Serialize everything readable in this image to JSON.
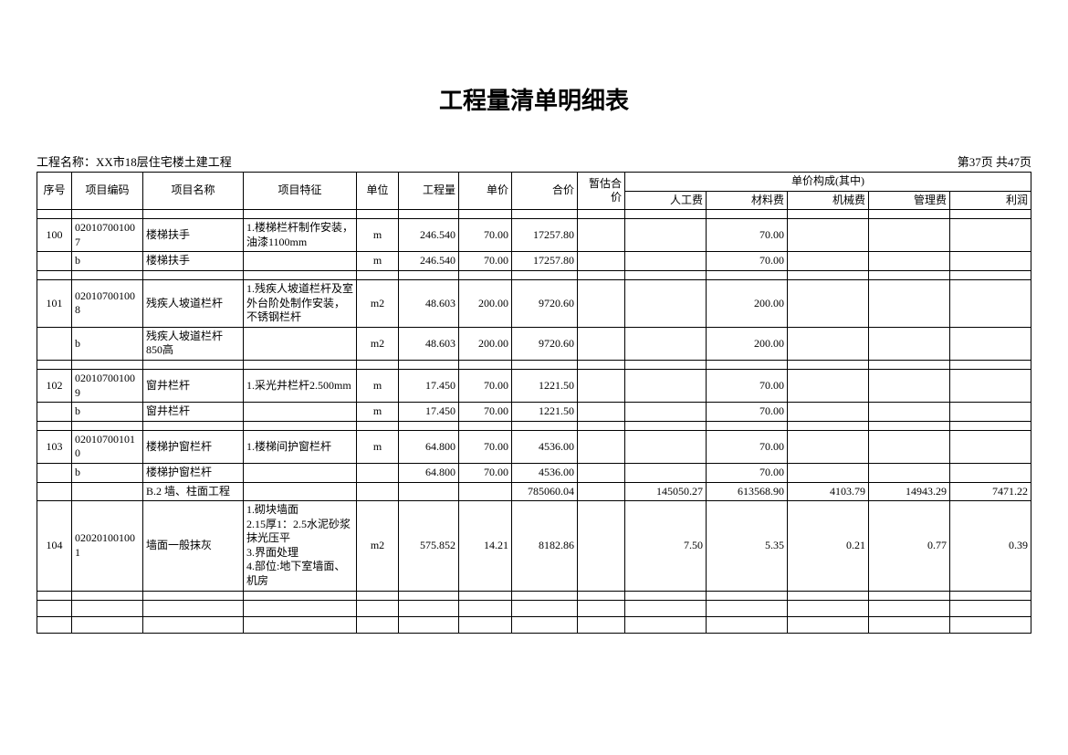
{
  "title": "工程量清单明细表",
  "project_label": "工程名称：",
  "project_name": "XX市18层住宅楼土建工程",
  "page_info": "第37页 共47页",
  "headers": {
    "seq": "序号",
    "code": "项目编码",
    "name": "项目名称",
    "feat": "项目特征",
    "unit": "单位",
    "qty": "工程量",
    "price": "单价",
    "total": "合价",
    "est": "暂估合价",
    "comp": "单价构成(其中)",
    "labor": "人工费",
    "material": "材料费",
    "machine": "机械费",
    "manage": "管理费",
    "profit": "利润"
  },
  "rows": [
    {
      "type": "spacer"
    },
    {
      "type": "data",
      "seq": "100",
      "code": "020107001007",
      "name": "楼梯扶手",
      "feat": "1.楼梯栏杆制作安装，油漆1100mm",
      "unit": "m",
      "qty": "246.540",
      "price": "70.00",
      "total": "17257.80",
      "est": "",
      "labor": "",
      "material": "70.00",
      "machine": "",
      "manage": "",
      "profit": ""
    },
    {
      "type": "data",
      "seq": "",
      "code": "b",
      "name": "楼梯扶手",
      "feat": "",
      "unit": "m",
      "qty": "246.540",
      "price": "70.00",
      "total": "17257.80",
      "est": "",
      "labor": "",
      "material": "70.00",
      "machine": "",
      "manage": "",
      "profit": ""
    },
    {
      "type": "spacer"
    },
    {
      "type": "data",
      "tall": true,
      "seq": "101",
      "code": "020107001008",
      "name": "残疾人坡道栏杆",
      "feat": "1.残疾人坡道栏杆及室外台阶处制作安装，不锈钢栏杆",
      "unit": "m2",
      "qty": "48.603",
      "price": "200.00",
      "total": "9720.60",
      "est": "",
      "labor": "",
      "material": "200.00",
      "machine": "",
      "manage": "",
      "profit": ""
    },
    {
      "type": "data",
      "seq": "",
      "code": "b",
      "name": "残疾人坡道栏杆 850高",
      "feat": "",
      "unit": "m2",
      "qty": "48.603",
      "price": "200.00",
      "total": "9720.60",
      "est": "",
      "labor": "",
      "material": "200.00",
      "machine": "",
      "manage": "",
      "profit": ""
    },
    {
      "type": "spacer"
    },
    {
      "type": "data",
      "seq": "102",
      "code": "020107001009",
      "name": "窗井栏杆",
      "feat": "1.采光井栏杆2.500mm",
      "unit": "m",
      "qty": "17.450",
      "price": "70.00",
      "total": "1221.50",
      "est": "",
      "labor": "",
      "material": "70.00",
      "machine": "",
      "manage": "",
      "profit": ""
    },
    {
      "type": "data",
      "seq": "",
      "code": "b",
      "name": "窗井栏杆",
      "feat": "",
      "unit": "m",
      "qty": "17.450",
      "price": "70.00",
      "total": "1221.50",
      "est": "",
      "labor": "",
      "material": "70.00",
      "machine": "",
      "manage": "",
      "profit": ""
    },
    {
      "type": "spacer"
    },
    {
      "type": "data",
      "seq": "103",
      "code": "020107001010",
      "name": "楼梯护窗栏杆",
      "feat": "1.楼梯间护窗栏杆",
      "unit": "m",
      "qty": "64.800",
      "price": "70.00",
      "total": "4536.00",
      "est": "",
      "labor": "",
      "material": "70.00",
      "machine": "",
      "manage": "",
      "profit": ""
    },
    {
      "type": "data",
      "seq": "",
      "code": "b",
      "name": "楼梯护窗栏杆",
      "feat": "",
      "unit": "",
      "qty": "64.800",
      "price": "70.00",
      "total": "4536.00",
      "est": "",
      "labor": "",
      "material": "70.00",
      "machine": "",
      "manage": "",
      "profit": ""
    },
    {
      "type": "data",
      "seq": "",
      "code": "",
      "name": "B.2 墙、柱面工程",
      "feat": "",
      "unit": "",
      "qty": "",
      "price": "",
      "total": "785060.04",
      "est": "",
      "labor": "145050.27",
      "material": "613568.90",
      "machine": "4103.79",
      "manage": "14943.29",
      "profit": "7471.22"
    },
    {
      "type": "data",
      "xtall": true,
      "seq": "104",
      "code": "020201001001",
      "name": "墙面一般抹灰",
      "feat": "1.砌块墙面\n2.15厚1：2.5水泥砂浆抹光压平\n3.界面处理\n4.部位:地下室墙面、机房",
      "unit": "m2",
      "qty": "575.852",
      "price": "14.21",
      "total": "8182.86",
      "est": "",
      "labor": "7.50",
      "material": "5.35",
      "machine": "0.21",
      "manage": "0.77",
      "profit": "0.39"
    },
    {
      "type": "spacer"
    },
    {
      "type": "data",
      "seq": "",
      "code": "",
      "name": "",
      "feat": "",
      "unit": "",
      "qty": "",
      "price": "",
      "total": "",
      "est": "",
      "labor": "",
      "material": "",
      "machine": "",
      "manage": "",
      "profit": ""
    },
    {
      "type": "data",
      "seq": "",
      "code": "",
      "name": "",
      "feat": "",
      "unit": "",
      "qty": "",
      "price": "",
      "total": "",
      "est": "",
      "labor": "",
      "material": "",
      "machine": "",
      "manage": "",
      "profit": ""
    }
  ]
}
